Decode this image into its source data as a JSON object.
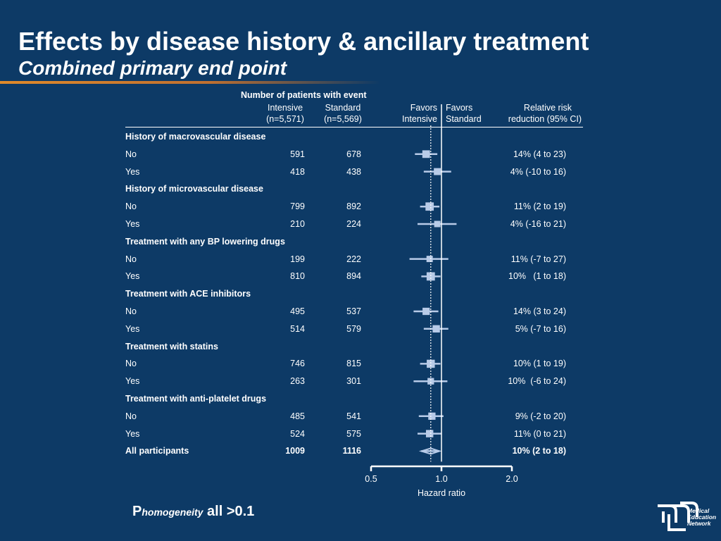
{
  "title": "Effects by disease history & ancillary treatment",
  "subtitle": "Combined primary end point",
  "header": {
    "group_label": "Number of patients with event",
    "intensive_label": "Intensive",
    "intensive_n": "(n=5,571)",
    "standard_label": "Standard",
    "standard_n": "(n=5,569)",
    "favors_intensive_1": "Favors",
    "favors_intensive_2": "Intensive",
    "favors_standard_1": "Favors",
    "favors_standard_2": "Standard",
    "rrr_label_1": "Relative risk",
    "rrr_label_2": "reduction (95% CI)"
  },
  "rows": [
    {
      "type": "heading",
      "label": "History of macrovascular disease"
    },
    {
      "type": "data",
      "label": "No",
      "intensive": "591",
      "standard": "678",
      "rrr": "14% (4 to 23)",
      "hr": 0.86,
      "lo": 0.77,
      "hi": 0.96
    },
    {
      "type": "data",
      "label": "Yes",
      "intensive": "418",
      "standard": "438",
      "rrr": "4% (-10 to 16)",
      "hr": 0.96,
      "lo": 0.84,
      "hi": 1.1
    },
    {
      "type": "heading",
      "label": "History of microvascular disease"
    },
    {
      "type": "data",
      "label": "No",
      "intensive": "799",
      "standard": "892",
      "rrr": "11% (2 to 19)",
      "hr": 0.89,
      "lo": 0.81,
      "hi": 0.98
    },
    {
      "type": "data",
      "label": "Yes",
      "intensive": "210",
      "standard": "224",
      "rrr": "4% (-16 to 21)",
      "hr": 0.96,
      "lo": 0.79,
      "hi": 1.16
    },
    {
      "type": "heading",
      "label": "Treatment with any BP lowering drugs"
    },
    {
      "type": "data",
      "label": "No",
      "intensive": "199",
      "standard": "222",
      "rrr": "11% (-7 to 27)",
      "hr": 0.89,
      "lo": 0.73,
      "hi": 1.07
    },
    {
      "type": "data",
      "label": "Yes",
      "intensive": "810",
      "standard": "894",
      "rrr": "10%   (1 to 18)",
      "hr": 0.9,
      "lo": 0.82,
      "hi": 0.99
    },
    {
      "type": "heading",
      "label": "Treatment with ACE inhibitors"
    },
    {
      "type": "data",
      "label": "No",
      "intensive": "495",
      "standard": "537",
      "rrr": "14% (3 to 24)",
      "hr": 0.86,
      "lo": 0.76,
      "hi": 0.97
    },
    {
      "type": "data",
      "label": "Yes",
      "intensive": "514",
      "standard": "579",
      "rrr": "5% (-7 to 16)",
      "hr": 0.95,
      "lo": 0.84,
      "hi": 1.07
    },
    {
      "type": "heading",
      "label": "Treatment with statins"
    },
    {
      "type": "data",
      "label": "No",
      "intensive": "746",
      "standard": "815",
      "rrr": "10% (1 to 19)",
      "hr": 0.9,
      "lo": 0.81,
      "hi": 0.99
    },
    {
      "type": "data",
      "label": "Yes",
      "intensive": "263",
      "standard": "301",
      "rrr": "10%  (-6 to 24)",
      "hr": 0.9,
      "lo": 0.76,
      "hi": 1.06
    },
    {
      "type": "heading",
      "label": "Treatment with anti-platelet drugs"
    },
    {
      "type": "data",
      "label": "No",
      "intensive": "485",
      "standard": "541",
      "rrr": "9% (-2 to 20)",
      "hr": 0.91,
      "lo": 0.8,
      "hi": 1.02
    },
    {
      "type": "data",
      "label": "Yes",
      "intensive": "524",
      "standard": "575",
      "rrr": "11% (0 to 21)",
      "hr": 0.89,
      "lo": 0.79,
      "hi": 1.0
    },
    {
      "type": "total",
      "label": "All participants",
      "intensive": "1009",
      "standard": "1116",
      "rrr": "10% (2 to 18)",
      "hr": 0.9,
      "lo": 0.82,
      "hi": 0.98
    }
  ],
  "chart_data": {
    "type": "scatter",
    "subtype": "forest-plot",
    "xlabel": "Hazard ratio",
    "x_scale": "log",
    "xlim": [
      0.5,
      2.0
    ],
    "x_ticks": [
      0.5,
      1.0,
      2.0
    ],
    "x_tick_labels": [
      "0.5",
      "1.0",
      "2.0"
    ],
    "reference_line": 1.0,
    "overall_line": 0.9,
    "grid": false,
    "legend": "none",
    "series": [
      {
        "categories": [
          "History of macrovascular disease: No",
          "History of macrovascular disease: Yes",
          "History of microvascular disease: No",
          "History of microvascular disease: Yes",
          "Treatment with any BP lowering drugs: No",
          "Treatment with any BP lowering drugs: Yes",
          "Treatment with ACE inhibitors: No",
          "Treatment with ACE inhibitors: Yes",
          "Treatment with statins: No",
          "Treatment with statins: Yes",
          "Treatment with anti-platelet drugs: No",
          "Treatment with anti-platelet drugs: Yes",
          "All participants"
        ],
        "hr": [
          0.86,
          0.96,
          0.89,
          0.96,
          0.89,
          0.9,
          0.86,
          0.95,
          0.9,
          0.9,
          0.91,
          0.89,
          0.9
        ],
        "ci_low": [
          0.77,
          0.84,
          0.81,
          0.79,
          0.73,
          0.82,
          0.76,
          0.84,
          0.81,
          0.76,
          0.8,
          0.79,
          0.82
        ],
        "ci_high": [
          0.96,
          1.1,
          0.98,
          1.16,
          1.07,
          0.99,
          0.97,
          1.07,
          0.99,
          1.06,
          1.02,
          1.0,
          0.98
        ]
      }
    ]
  },
  "footnote": {
    "p_letter": "P",
    "p_subscript": "homogeneity",
    "p_value": " all >0.1"
  },
  "logo": {
    "line1": "Medical",
    "line2": "Education",
    "line3": "Network"
  },
  "colors": {
    "background": "#0d3a66",
    "marker": "#b8cbe8",
    "text": "#ffffff",
    "accent": "#e08a2a"
  }
}
